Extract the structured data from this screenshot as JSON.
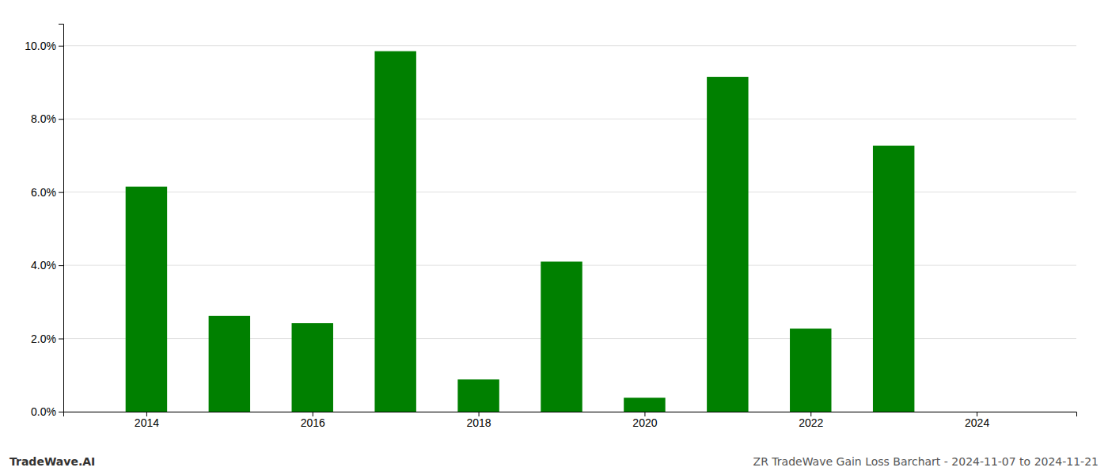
{
  "chart_data": {
    "type": "bar",
    "x": [
      2014,
      2015,
      2016,
      2017,
      2018,
      2019,
      2020,
      2021,
      2022,
      2023,
      2024
    ],
    "values": [
      0.0615,
      0.0262,
      0.0242,
      0.0985,
      0.0088,
      0.041,
      0.0038,
      0.0915,
      0.0227,
      0.0727,
      null
    ],
    "color": "#008000",
    "xlim": [
      2013.0,
      2025.2
    ],
    "xticks": [
      2014,
      2016,
      2018,
      2020,
      2022,
      2024
    ],
    "ylim": [
      0,
      0.106
    ],
    "yticks": [
      {
        "value": 0.0,
        "label": "0.0%"
      },
      {
        "value": 0.02,
        "label": "2.0%"
      },
      {
        "value": 0.04,
        "label": "4.0%"
      },
      {
        "value": 0.06,
        "label": "6.0%"
      },
      {
        "value": 0.08,
        "label": "8.0%"
      },
      {
        "value": 0.1,
        "label": "10.0%"
      }
    ],
    "grid": true,
    "annotations": [
      "TradeWave.AI",
      "ZR TradeWave Gain Loss Barchart - 2024-11-07 to 2024-11-21"
    ]
  }
}
